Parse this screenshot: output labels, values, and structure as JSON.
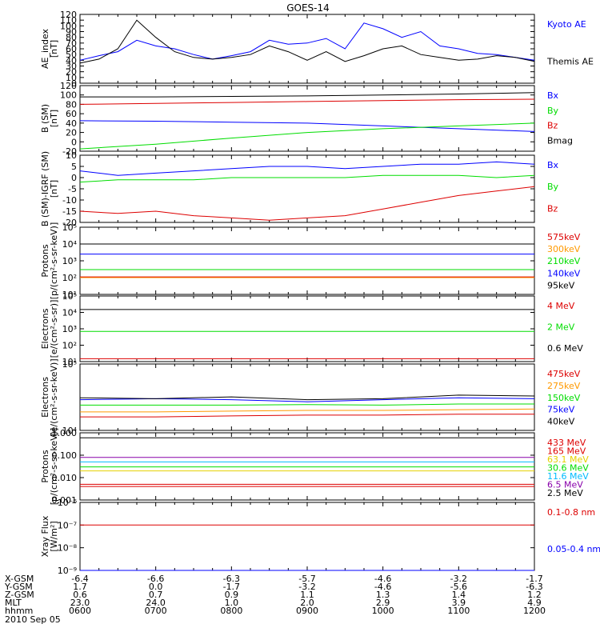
{
  "title": "GOES-14",
  "date_label": "2010 Sep 05",
  "ephemeris": {
    "rows": [
      {
        "label": "X-GSM",
        "values": [
          "-6.4",
          "-6.6",
          "-6.3",
          "-5.7",
          "-4.6",
          "-3.2",
          "-1.7"
        ]
      },
      {
        "label": "Y-GSM",
        "values": [
          "1.7",
          "0.0",
          "-1.7",
          "-3.2",
          "-4.6",
          "-5.6",
          "-6.3"
        ]
      },
      {
        "label": "Z-GSM",
        "values": [
          "0.6",
          "0.7",
          "0.9",
          "1.1",
          "1.3",
          "1.4",
          "1.2"
        ]
      },
      {
        "label": "MLT",
        "values": [
          "23.0",
          "24.0",
          "1.0",
          "2.0",
          "2.9",
          "3.9",
          "4.9"
        ]
      },
      {
        "label": "hhmm",
        "values": [
          "0600",
          "0700",
          "0800",
          "0900",
          "1000",
          "1100",
          "1200"
        ]
      }
    ]
  },
  "colors": {
    "black": "#000000",
    "blue": "#0000ff",
    "red": "#dd0000",
    "green": "#00dd00",
    "orange": "#ff9900",
    "yellow": "#e6d000",
    "cyan": "#00bbff",
    "purple": "#8800aa"
  },
  "chart_data": [
    {
      "type": "line",
      "ylabel": "AE_index\n[nT]",
      "ylim": [
        0,
        120
      ],
      "yticks": [
        "0",
        "10",
        "20",
        "30",
        "40",
        "50",
        "60",
        "70",
        "80",
        "90",
        "100",
        "110",
        "120"
      ],
      "x": [
        "06:00",
        "06:15",
        "06:30",
        "06:45",
        "07:00",
        "07:15",
        "07:30",
        "07:45",
        "08:00",
        "08:15",
        "08:30",
        "08:45",
        "09:00",
        "09:15",
        "09:30",
        "09:45",
        "10:00",
        "10:15",
        "10:30",
        "10:45",
        "11:00",
        "11:15",
        "11:30",
        "11:45",
        "12:00"
      ],
      "series": [
        {
          "name": "Kyoto AE",
          "color": "blue",
          "values": [
            40,
            48,
            55,
            75,
            65,
            60,
            50,
            42,
            48,
            55,
            75,
            68,
            70,
            78,
            60,
            105,
            95,
            80,
            90,
            65,
            60,
            52,
            50,
            45,
            40
          ]
        },
        {
          "name": "Themis AE",
          "color": "black",
          "values": [
            35,
            42,
            60,
            110,
            80,
            55,
            45,
            42,
            45,
            50,
            65,
            55,
            40,
            55,
            38,
            48,
            60,
            65,
            50,
            45,
            40,
            42,
            48,
            45,
            38
          ]
        }
      ]
    },
    {
      "type": "line",
      "ylabel": "B (SM)\n[nT]",
      "ylim": [
        -20,
        120
      ],
      "yticks": [
        "-20",
        "0",
        "20",
        "40",
        "60",
        "80",
        "100",
        "120"
      ],
      "x": [
        "06:00",
        "07:00",
        "08:00",
        "09:00",
        "10:00",
        "11:00",
        "12:00"
      ],
      "series": [
        {
          "name": "Bx",
          "color": "blue",
          "values": [
            45,
            44,
            42,
            40,
            34,
            28,
            22
          ]
        },
        {
          "name": "By",
          "color": "green",
          "values": [
            -15,
            -5,
            8,
            20,
            28,
            34,
            40
          ]
        },
        {
          "name": "Bz",
          "color": "red",
          "values": [
            80,
            82,
            84,
            86,
            88,
            90,
            91
          ]
        },
        {
          "name": "Bmag",
          "color": "black",
          "values": [
            96,
            96,
            97,
            98,
            100,
            102,
            105
          ]
        }
      ]
    },
    {
      "type": "line",
      "ylabel": "B (SM)-IGRF (SM)\n[nT]",
      "ylim": [
        -20,
        10
      ],
      "yticks": [
        "-20",
        "-15",
        "-10",
        "-5",
        "0",
        "5",
        "10"
      ],
      "x": [
        "06:00",
        "06:30",
        "07:00",
        "07:30",
        "08:00",
        "08:30",
        "09:00",
        "09:30",
        "10:00",
        "10:30",
        "11:00",
        "11:30",
        "12:00"
      ],
      "series": [
        {
          "name": "Bx",
          "color": "blue",
          "values": [
            3,
            1,
            2,
            3,
            4,
            5,
            5,
            4,
            5,
            6,
            6,
            7,
            6
          ]
        },
        {
          "name": "By",
          "color": "green",
          "values": [
            -2,
            -1,
            -1,
            -1,
            0,
            0,
            0,
            0,
            1,
            1,
            1,
            0,
            1
          ]
        },
        {
          "name": "Bz",
          "color": "red",
          "values": [
            -15,
            -16,
            -15,
            -17,
            -18,
            -19,
            -18,
            -17,
            -14,
            -11,
            -8,
            -6,
            -4
          ]
        }
      ]
    },
    {
      "type": "line",
      "ylabel": "Protons\n[p/(cm²-s-sr-keV)]",
      "yscale": "log",
      "ylim": [
        10,
        100000
      ],
      "yticks": [
        "10¹",
        "10²",
        "10³",
        "10⁴",
        "10⁵"
      ],
      "x": [
        "06:00",
        "12:00"
      ],
      "series": [
        {
          "name": "575keV",
          "color": "red",
          "values": [
            110,
            110
          ]
        },
        {
          "name": "300keV",
          "color": "orange",
          "values": [
            100,
            100
          ]
        },
        {
          "name": "210keV",
          "color": "green",
          "values": [
            300,
            300
          ]
        },
        {
          "name": "140keV",
          "color": "blue",
          "values": [
            2500,
            2500
          ]
        },
        {
          "name": "95keV",
          "color": "black",
          "values": [
            10000,
            10000
          ]
        }
      ]
    },
    {
      "type": "line",
      "ylabel": "Electrons\n[e/(cm²-s-sr)]",
      "yscale": "log",
      "ylim": [
        10,
        100000
      ],
      "yticks": [
        "10¹",
        "10²",
        "10³",
        "10⁴",
        "10⁵"
      ],
      "x": [
        "06:00",
        "12:00"
      ],
      "series": [
        {
          "name": "4 MeV",
          "color": "red",
          "values": [
            15,
            15
          ]
        },
        {
          "name": "2 MeV",
          "color": "green",
          "values": [
            700,
            700
          ]
        },
        {
          "name": "0.6 MeV",
          "color": "black",
          "values": [
            15000,
            15000
          ]
        }
      ]
    },
    {
      "type": "line",
      "ylabel": "Electrons\n[e/(cm²-s-sr-keV)]",
      "yscale": "log",
      "ylim": [
        10000,
        100000
      ],
      "yticks": [
        "10⁴",
        "10⁵"
      ],
      "x": [
        "06:00",
        "07:00",
        "08:00",
        "09:00",
        "10:00",
        "11:00",
        "12:00"
      ],
      "series": [
        {
          "name": "475keV",
          "color": "red",
          "values": [
            16000,
            16000,
            16500,
            17000,
            17000,
            17500,
            17500
          ]
        },
        {
          "name": "275keV",
          "color": "orange",
          "values": [
            19000,
            19000,
            19500,
            20000,
            20000,
            20500,
            21000
          ]
        },
        {
          "name": "150keV",
          "color": "green",
          "values": [
            24000,
            24000,
            24000,
            24500,
            24000,
            25000,
            25000
          ]
        },
        {
          "name": "75keV",
          "color": "blue",
          "values": [
            29000,
            30000,
            29000,
            27000,
            29000,
            31000,
            30000
          ]
        },
        {
          "name": "40keV",
          "color": "black",
          "values": [
            31000,
            30000,
            32000,
            29000,
            30000,
            34000,
            33000
          ]
        }
      ]
    },
    {
      "type": "line",
      "ylabel": "Protons\n[p/(cm²-s-sr-keV)]",
      "yscale": "log",
      "ylim": [
        0.001,
        1.0
      ],
      "yticks": [
        "0.001",
        "0.010",
        "0.100",
        "1.000"
      ],
      "x": [
        "06:00",
        "12:00"
      ],
      "series": [
        {
          "name": "433 MeV",
          "color": "red",
          "values": [
            0.004,
            0.004
          ]
        },
        {
          "name": "165 MeV",
          "color": "red",
          "values": [
            0.005,
            0.005
          ]
        },
        {
          "name": "63.1 MeV",
          "color": "yellow",
          "values": [
            0.02,
            0.02
          ]
        },
        {
          "name": "30.6 MeV",
          "color": "green",
          "values": [
            0.03,
            0.03
          ]
        },
        {
          "name": "11.6 MeV",
          "color": "cyan",
          "values": [
            0.05,
            0.05
          ]
        },
        {
          "name": "6.5 MeV",
          "color": "purple",
          "values": [
            0.08,
            0.08
          ]
        },
        {
          "name": "2.5 MeV",
          "color": "black",
          "values": [
            0.6,
            0.6
          ]
        }
      ]
    },
    {
      "type": "line",
      "ylabel": "Xray Flux\n[W/m²]",
      "yscale": "log",
      "ylim": [
        1e-09,
        1e-06
      ],
      "yticks": [
        "10⁻⁹",
        "10⁻⁸",
        "10⁻⁷",
        "10⁻⁶"
      ],
      "x": [
        "06:00",
        "12:00"
      ],
      "series": [
        {
          "name": "0.1-0.8 nm",
          "color": "red",
          "values": [
            1e-07,
            1e-07
          ]
        },
        {
          "name": "0.05-0.4 nm",
          "color": "blue",
          "values": [
            1e-09,
            1e-09
          ]
        }
      ]
    }
  ]
}
